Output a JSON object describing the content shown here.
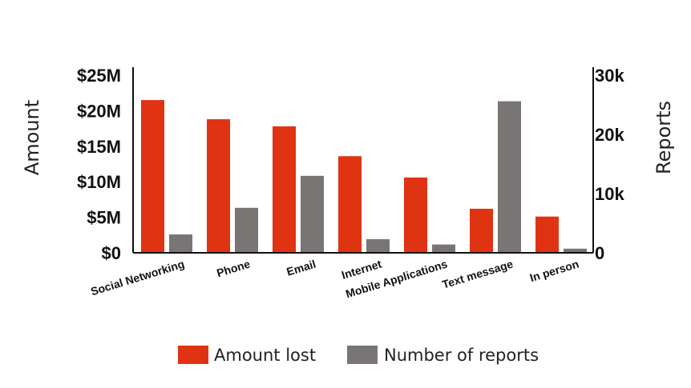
{
  "chart_data": {
    "type": "bar",
    "categories": [
      "Social Networking",
      "Phone",
      "Email",
      "Internet",
      "Mobile Applications",
      "Text message",
      "In person"
    ],
    "series": [
      {
        "name": "Amount lost",
        "axis": "left",
        "color": "#e03312",
        "values": [
          21.5,
          18.8,
          17.8,
          13.6,
          10.6,
          6.2,
          5.1
        ]
      },
      {
        "name": "Number of reports",
        "axis": "right",
        "color": "#7a7575",
        "values": [
          3100,
          7600,
          13000,
          2300,
          1400,
          25600,
          700
        ]
      }
    ],
    "ylabel": "Amount",
    "y2label": "Reports",
    "ylim": [
      0,
      25
    ],
    "y2lim": [
      0,
      30000
    ],
    "yticks": [
      "$0",
      "$5M",
      "$10M",
      "$15M",
      "$20M",
      "$25M"
    ],
    "y2ticks": [
      "0",
      "10k",
      "20k",
      "30k"
    ],
    "ytick_values": [
      0,
      5,
      10,
      15,
      20,
      25
    ],
    "y2tick_values": [
      0,
      10000,
      20000,
      30000
    ],
    "legend_position": "bottom",
    "grid": false
  }
}
